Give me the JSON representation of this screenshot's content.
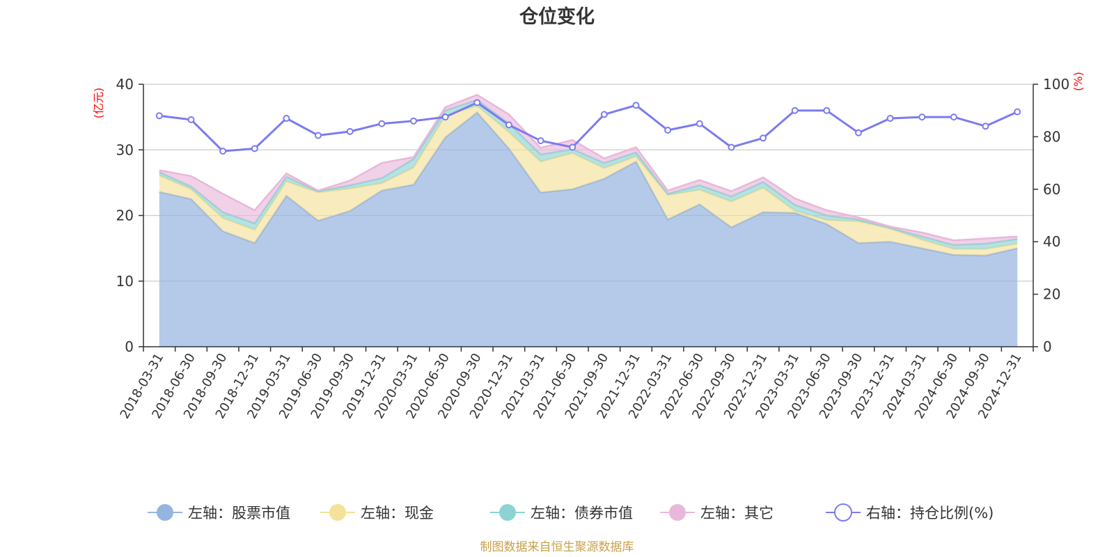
{
  "chart_data": {
    "type": "area",
    "title": "仓位变化",
    "left_unit": "(亿元)",
    "right_unit": "(%)",
    "left_ylim": [
      0,
      40
    ],
    "left_ticks": [
      "0",
      "10",
      "20",
      "30",
      "40"
    ],
    "right_ylim": [
      0,
      100
    ],
    "right_ticks": [
      "0",
      "20",
      "40",
      "60",
      "80",
      "100"
    ],
    "categories": [
      "2018-03-31",
      "2018-06-30",
      "2018-09-30",
      "2018-12-31",
      "2019-03-31",
      "2019-06-30",
      "2019-09-30",
      "2019-12-31",
      "2020-03-31",
      "2020-06-30",
      "2020-09-30",
      "2020-12-31",
      "2021-03-31",
      "2021-06-30",
      "2021-09-30",
      "2021-12-31",
      "2022-03-31",
      "2022-06-30",
      "2022-09-30",
      "2022-12-31",
      "2023-03-31",
      "2023-06-30",
      "2023-09-30",
      "2023-12-31",
      "2024-03-31",
      "2024-06-30",
      "2024-09-30",
      "2024-12-31"
    ],
    "series": [
      {
        "name": "左轴：股票市值",
        "axis": "left",
        "color": "#96b4e0",
        "values": [
          23.6,
          22.5,
          17.6,
          15.8,
          23.0,
          19.2,
          20.7,
          23.8,
          24.7,
          31.9,
          35.7,
          30.2,
          23.5,
          24.0,
          25.6,
          28.2,
          19.4,
          21.7,
          18.2,
          20.5,
          20.4,
          18.7,
          15.8,
          16.0,
          15.0,
          14.0,
          13.9,
          15.0
        ]
      },
      {
        "name": "左轴：现金",
        "axis": "left",
        "color": "#f5e199",
        "values": [
          2.5,
          1.5,
          2.0,
          2.0,
          2.2,
          4.3,
          3.4,
          1.1,
          2.6,
          3.3,
          1.0,
          2.5,
          4.7,
          5.5,
          1.6,
          0.8,
          3.7,
          2.2,
          3.9,
          3.7,
          0.3,
          0.6,
          3.3,
          2.0,
          1.3,
          0.9,
          1.0,
          0.7
        ]
      },
      {
        "name": "左轴：债券市值",
        "axis": "left",
        "color": "#8dd3d3",
        "values": [
          0.5,
          0.4,
          0.9,
          1.0,
          0.7,
          0.2,
          0.5,
          0.8,
          1.3,
          0.8,
          0.9,
          1.3,
          1.1,
          0.6,
          0.8,
          0.6,
          0.2,
          0.7,
          0.8,
          0.9,
          0.9,
          0.7,
          0.3,
          0.1,
          0.5,
          0.6,
          0.8,
          0.7
        ]
      },
      {
        "name": "左轴：其它",
        "axis": "left",
        "color": "#e8b8da",
        "values": [
          0.3,
          1.6,
          2.8,
          2.0,
          0.5,
          0.1,
          0.7,
          2.3,
          0.3,
          0.5,
          0.8,
          1.4,
          1.0,
          1.4,
          0.7,
          0.8,
          0.5,
          0.8,
          0.8,
          0.7,
          1.0,
          0.8,
          0.3,
          0.2,
          0.6,
          0.7,
          0.8,
          0.4
        ]
      },
      {
        "name": "右轴：持仓比例(%)",
        "axis": "right",
        "color": "#7b7bf0",
        "values": [
          88,
          86.5,
          74.5,
          75.5,
          87,
          80.5,
          82,
          85,
          86,
          87.5,
          93,
          84.5,
          78.5,
          76,
          88.5,
          92,
          82.5,
          85,
          76,
          79.5,
          90,
          90,
          81.5,
          87,
          87.5,
          87.5,
          84,
          89.5
        ]
      }
    ],
    "legend": [
      "左轴：股票市值",
      "左轴：现金",
      "左轴：债券市值",
      "左轴：其它",
      "右轴：持仓比例(%)"
    ],
    "legend_position": "bottom-center",
    "source": "制图数据来自恒生聚源数据库"
  }
}
